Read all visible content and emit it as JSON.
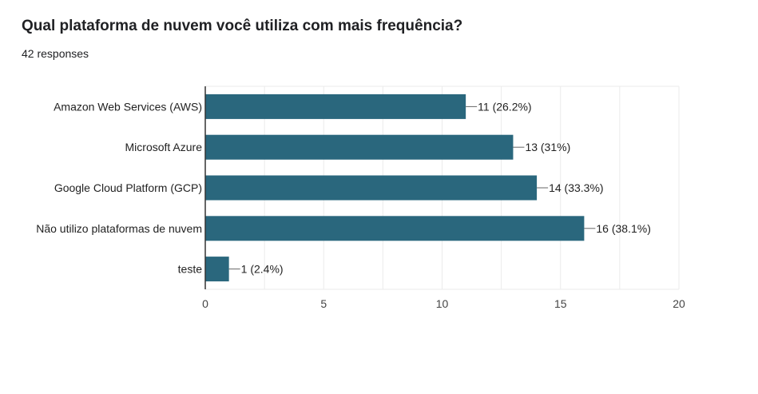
{
  "question": "Qual plataforma de nuvem você utiliza com mais frequência?",
  "responses_label": "42 responses",
  "colors": {
    "bar": "#2a677d",
    "grid": "#ebebeb",
    "axis": "#333333"
  },
  "chart_data": {
    "type": "bar",
    "orientation": "horizontal",
    "categories": [
      "Amazon Web Services (AWS)",
      "Microsoft Azure",
      "Google Cloud Platform (GCP)",
      "Não utilizo plataformas de nuvem",
      "teste"
    ],
    "values": [
      11,
      13,
      14,
      16,
      1
    ],
    "data_labels": [
      "11 (26.2%)",
      "13 (31%)",
      "14 (33.3%)",
      "16 (38.1%)",
      "1 (2.4%)"
    ],
    "xlim": [
      0,
      20
    ],
    "xticks": [
      "0",
      "5",
      "10",
      "15",
      "20"
    ],
    "grid": true
  }
}
